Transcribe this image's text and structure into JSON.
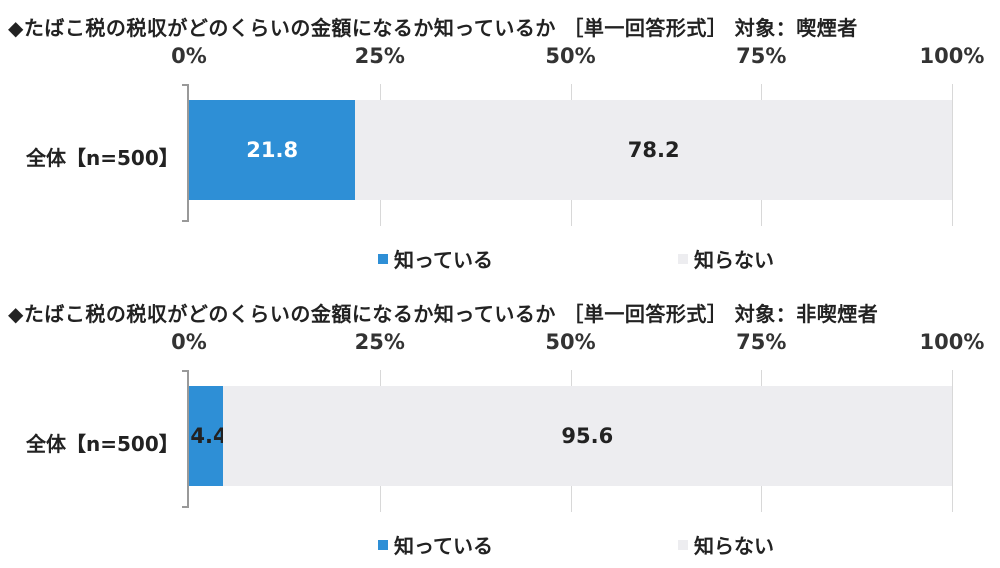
{
  "chart_data": [
    {
      "type": "bar",
      "orientation": "horizontal",
      "stacked": true,
      "title": "◆たばこ税の税収がどのくらいの金額になるか知っているか ［単一回答形式］ 対象：喫煙者",
      "categories": [
        "全体【n=500】"
      ],
      "series": [
        {
          "name": "知っている",
          "values": [
            21.8
          ],
          "color": "#2e8fd6"
        },
        {
          "name": "知らない",
          "values": [
            78.2
          ],
          "color": "#ededf0"
        }
      ],
      "xlim": [
        0,
        100
      ],
      "ticks": [
        "0%",
        "25%",
        "50%",
        "75%",
        "100%"
      ],
      "legend": "bottom"
    },
    {
      "type": "bar",
      "orientation": "horizontal",
      "stacked": true,
      "title": "◆たばこ税の税収がどのくらいの金額になるか知っているか ［単一回答形式］ 対象：非喫煙者",
      "categories": [
        "全体【n=500】"
      ],
      "series": [
        {
          "name": "知っている",
          "values": [
            4.4
          ],
          "color": "#2e8fd6"
        },
        {
          "name": "知らない",
          "values": [
            95.6
          ],
          "color": "#ededf0"
        }
      ],
      "xlim": [
        0,
        100
      ],
      "ticks": [
        "0%",
        "25%",
        "50%",
        "75%",
        "100%"
      ],
      "legend": "bottom"
    }
  ]
}
